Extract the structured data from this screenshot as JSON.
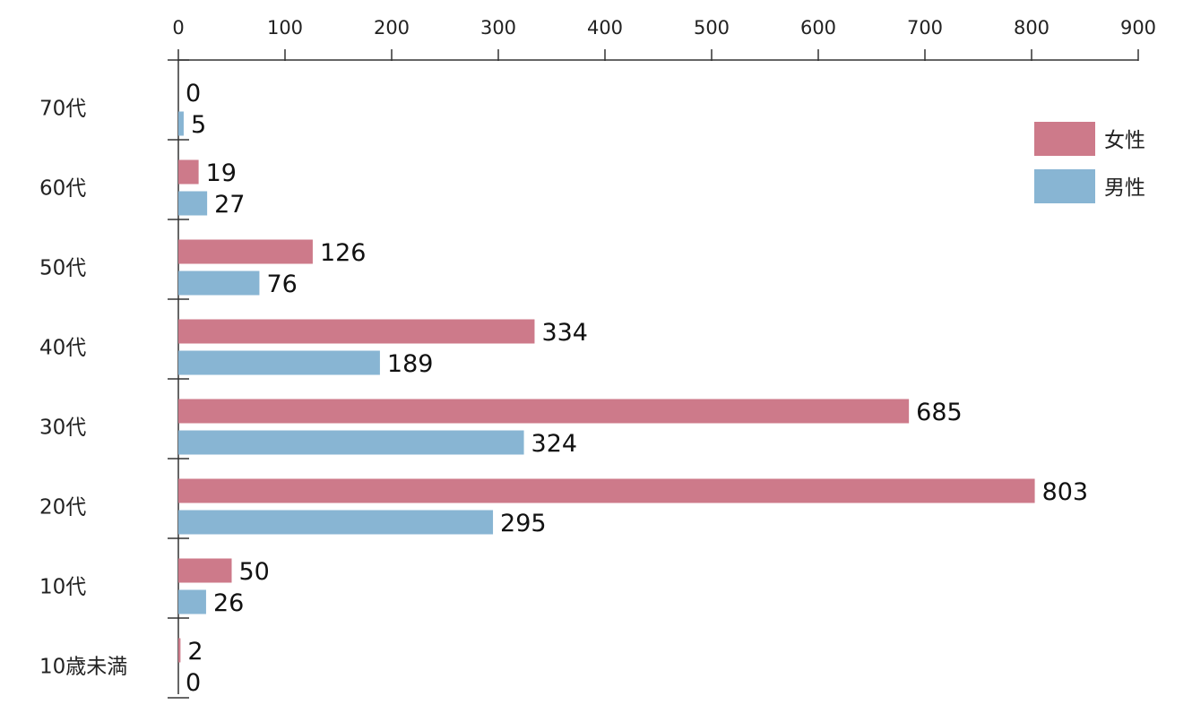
{
  "chart_data": {
    "type": "bar",
    "orientation": "horizontal",
    "categories": [
      "70代",
      "60代",
      "50代",
      "40代",
      "30代",
      "20代",
      "10代",
      "10歳未満"
    ],
    "series": [
      {
        "name": "女性",
        "values": [
          0,
          19,
          126,
          334,
          685,
          803,
          50,
          2
        ],
        "color": "#cd7a8a"
      },
      {
        "name": "男性",
        "values": [
          5,
          27,
          76,
          189,
          324,
          295,
          26,
          0
        ],
        "color": "#88b5d3"
      }
    ],
    "x_ticks": [
      "0",
      "100",
      "200",
      "300",
      "400",
      "500",
      "600",
      "700",
      "800",
      "900"
    ],
    "xlim": [
      0,
      900
    ],
    "axis_position": "top",
    "legend_position": "top-right",
    "grid": false
  }
}
